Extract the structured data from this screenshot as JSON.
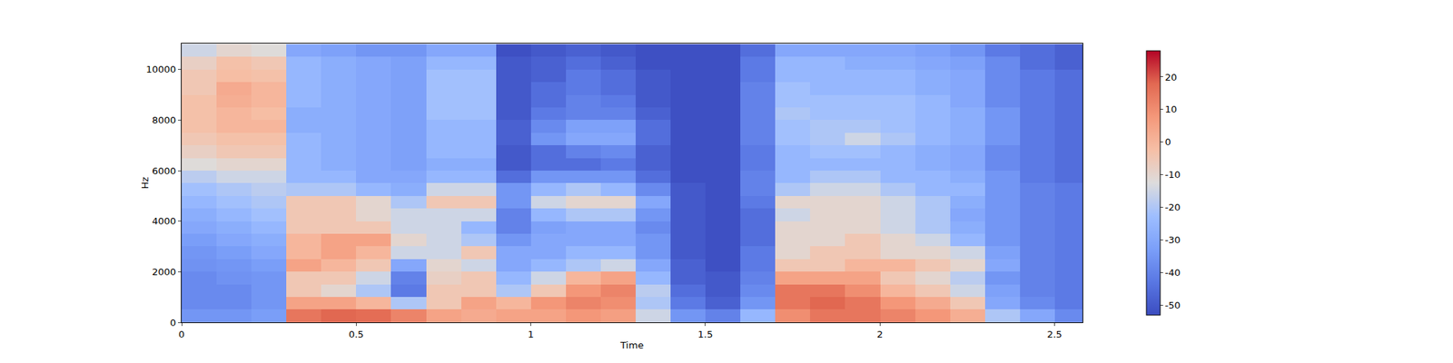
{
  "chart_data": {
    "type": "heatmap",
    "x_label": "Time",
    "y_label": "Hz",
    "color": "coolwarm",
    "xlim": [
      0,
      2.58
    ],
    "xticks": [
      0,
      0.5,
      1,
      1.5,
      2,
      2.5
    ],
    "ylim": [
      0,
      11025
    ],
    "yticks": [
      0,
      2000,
      4000,
      6000,
      8000,
      10000
    ],
    "zlim": [
      -53,
      28
    ],
    "zticks": [
      -50,
      -40,
      -30,
      -20,
      -10,
      0,
      10,
      20
    ],
    "x": [
      0.05,
      0.15,
      0.25,
      0.35,
      0.45,
      0.55,
      0.65,
      0.75,
      0.85,
      0.95,
      1.05,
      1.15,
      1.25,
      1.35,
      1.45,
      1.55,
      1.65,
      1.75,
      1.85,
      1.95,
      2.05,
      2.15,
      2.25,
      2.35,
      2.45,
      2.55
    ],
    "y": [
      250,
      750,
      1250,
      1750,
      2250,
      2750,
      3250,
      3750,
      4250,
      4750,
      5250,
      5750,
      6250,
      6750,
      7250,
      7750,
      8250,
      8750,
      9250,
      9750,
      10250,
      10750
    ],
    "z": [
      [
        -35,
        -35,
        -33,
        15,
        18,
        17,
        12,
        5,
        3,
        5,
        5,
        8,
        6,
        -15,
        -35,
        -40,
        -25,
        10,
        15,
        15,
        12,
        8,
        2,
        -20,
        -30,
        -38
      ],
      [
        -38,
        -38,
        -35,
        5,
        5,
        0,
        -20,
        -5,
        5,
        0,
        8,
        12,
        10,
        -20,
        -42,
        -48,
        -35,
        15,
        18,
        15,
        8,
        3,
        -5,
        -30,
        -38,
        -42
      ],
      [
        -38,
        -38,
        -35,
        -5,
        -10,
        -20,
        -42,
        -5,
        -5,
        -20,
        -5,
        8,
        12,
        -18,
        -45,
        -50,
        -38,
        15,
        15,
        10,
        0,
        -5,
        -15,
        -32,
        -40,
        -42
      ],
      [
        -38,
        -36,
        -35,
        -5,
        -5,
        -15,
        -40,
        -8,
        -5,
        -25,
        -15,
        0,
        5,
        -25,
        -48,
        -50,
        -40,
        5,
        5,
        5,
        -5,
        -10,
        -18,
        -35,
        -40,
        -42
      ],
      [
        -36,
        -35,
        -33,
        5,
        0,
        -5,
        -30,
        -10,
        -15,
        -30,
        -25,
        -20,
        -15,
        -30,
        -48,
        -52,
        -42,
        -5,
        -5,
        0,
        0,
        -5,
        -10,
        -30,
        -40,
        -42
      ],
      [
        -35,
        -33,
        -30,
        0,
        5,
        0,
        -15,
        -15,
        -5,
        -30,
        -30,
        -25,
        -25,
        -35,
        -50,
        -52,
        -42,
        -10,
        -5,
        -5,
        -10,
        -10,
        -15,
        -32,
        -40,
        -42
      ],
      [
        -33,
        -30,
        -28,
        0,
        5,
        5,
        -10,
        -15,
        -20,
        -35,
        -30,
        -30,
        -30,
        -35,
        -50,
        -52,
        -45,
        -10,
        -10,
        -5,
        -10,
        -15,
        -25,
        -35,
        -40,
        -42
      ],
      [
        -30,
        -28,
        -25,
        -5,
        -5,
        -5,
        -15,
        -15,
        -25,
        -40,
        -32,
        -30,
        -30,
        -38,
        -50,
        -52,
        -45,
        -10,
        -10,
        -10,
        -15,
        -20,
        -28,
        -35,
        -40,
        -42
      ],
      [
        -28,
        -25,
        -22,
        -5,
        -5,
        -10,
        -15,
        -15,
        -15,
        -40,
        -25,
        -20,
        -20,
        -35,
        -50,
        -52,
        -45,
        -15,
        -10,
        -10,
        -15,
        -20,
        -30,
        -35,
        -40,
        -42
      ],
      [
        -25,
        -22,
        -20,
        -5,
        -5,
        -10,
        -20,
        -5,
        -5,
        -35,
        -15,
        -10,
        -10,
        -30,
        -50,
        -52,
        -42,
        -10,
        -10,
        -10,
        -15,
        -20,
        -28,
        -35,
        -40,
        -42
      ],
      [
        -22,
        -20,
        -18,
        -20,
        -20,
        -25,
        -28,
        -15,
        -15,
        -35,
        -25,
        -20,
        -25,
        -38,
        -50,
        -52,
        -40,
        -20,
        -15,
        -15,
        -20,
        -25,
        -25,
        -35,
        -40,
        -42
      ],
      [
        -18,
        -15,
        -15,
        -25,
        -25,
        -30,
        -30,
        -25,
        -25,
        -45,
        -35,
        -35,
        -35,
        -45,
        -52,
        -52,
        -40,
        -25,
        -20,
        -20,
        -25,
        -25,
        -28,
        -35,
        -42,
        -45
      ],
      [
        -12,
        -10,
        -10,
        -25,
        -28,
        -30,
        -32,
        -28,
        -28,
        -50,
        -45,
        -45,
        -42,
        -48,
        -52,
        -52,
        -42,
        -25,
        -25,
        -25,
        -25,
        -28,
        -30,
        -38,
        -42,
        -45
      ],
      [
        -8,
        -5,
        -5,
        -25,
        -28,
        -30,
        -32,
        -25,
        -25,
        -50,
        -45,
        -40,
        -38,
        -48,
        -52,
        -52,
        -42,
        -25,
        -22,
        -22,
        -25,
        -28,
        -30,
        -38,
        -42,
        -45
      ],
      [
        -5,
        -3,
        -3,
        -25,
        -28,
        -30,
        -32,
        -25,
        -25,
        -48,
        -35,
        -30,
        -30,
        -45,
        -52,
        -52,
        -40,
        -22,
        -20,
        -15,
        -20,
        -25,
        -28,
        -35,
        -42,
        -45
      ],
      [
        -3,
        0,
        0,
        -28,
        -28,
        -30,
        -32,
        -25,
        -25,
        -48,
        -38,
        -32,
        -32,
        -45,
        -52,
        -52,
        -40,
        -22,
        -20,
        -20,
        -22,
        -25,
        -28,
        -35,
        -42,
        -45
      ],
      [
        -3,
        0,
        -2,
        -28,
        -28,
        -30,
        -32,
        -22,
        -22,
        -50,
        -42,
        -40,
        -40,
        -48,
        -52,
        -52,
        -40,
        -20,
        -22,
        -22,
        -22,
        -25,
        -28,
        -35,
        -42,
        -45
      ],
      [
        -3,
        2,
        0,
        -25,
        -28,
        -30,
        -32,
        -22,
        -22,
        -50,
        -45,
        -40,
        -42,
        -50,
        -52,
        -52,
        -40,
        -22,
        -22,
        -22,
        -22,
        -25,
        -30,
        -38,
        -42,
        -45
      ],
      [
        -5,
        3,
        0,
        -25,
        -28,
        -30,
        -32,
        -22,
        -22,
        -50,
        -45,
        -42,
        -45,
        -50,
        -52,
        -52,
        -40,
        -22,
        -25,
        -25,
        -25,
        -28,
        -30,
        -38,
        -42,
        -45
      ],
      [
        -5,
        -2,
        -3,
        -25,
        -28,
        -30,
        -32,
        -22,
        -22,
        -50,
        -48,
        -42,
        -45,
        -50,
        -52,
        -52,
        -42,
        -25,
        -25,
        -25,
        -25,
        -28,
        -30,
        -38,
        -42,
        -45
      ],
      [
        -8,
        -3,
        -5,
        -25,
        -28,
        -30,
        -32,
        -25,
        -25,
        -50,
        -48,
        -45,
        -48,
        -52,
        -52,
        -52,
        -42,
        -25,
        -25,
        -28,
        -28,
        -30,
        -32,
        -38,
        -45,
        -48
      ],
      [
        -15,
        -10,
        -12,
        -30,
        -32,
        -35,
        -35,
        -30,
        -30,
        -52,
        -50,
        -48,
        -50,
        -52,
        -52,
        -52,
        -45,
        -30,
        -30,
        -30,
        -30,
        -32,
        -35,
        -42,
        -45,
        -48
      ]
    ]
  }
}
